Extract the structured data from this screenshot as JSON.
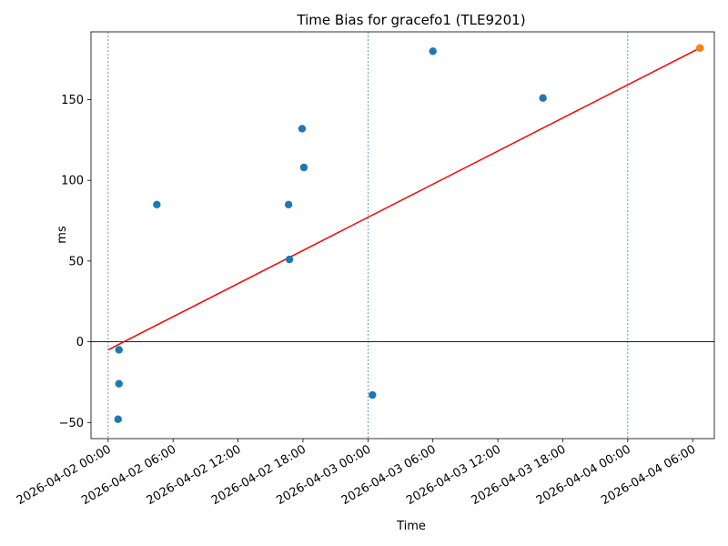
{
  "chart_data": {
    "type": "scatter",
    "title": "Time Bias for gracefo1 (TLE9201)",
    "xlabel": "Time",
    "ylabel": "ms",
    "x_tick_labels": [
      "2026-04-02 00:00",
      "2026-04-02 06:00",
      "2026-04-02 12:00",
      "2026-04-02 18:00",
      "2026-04-03 00:00",
      "2026-04-03 06:00",
      "2026-04-03 12:00",
      "2026-04-03 18:00",
      "2026-04-04 00:00",
      "2026-04-04 06:00"
    ],
    "x_tick_values": [
      "2026-04-02T00:00",
      "2026-04-02T06:00",
      "2026-04-02T12:00",
      "2026-04-02T18:00",
      "2026-04-03T00:00",
      "2026-04-03T06:00",
      "2026-04-03T12:00",
      "2026-04-03T18:00",
      "2026-04-04T00:00",
      "2026-04-04T06:00"
    ],
    "y_ticks": [
      -50,
      0,
      50,
      100,
      150
    ],
    "xlim": [
      "2026-04-01T22:25",
      "2026-04-04T08:00"
    ],
    "ylim": [
      -60,
      192
    ],
    "grid": false,
    "zero_line": 0,
    "vertical_reference_lines": [
      "2026-04-02T00:00",
      "2026-04-03T00:00",
      "2026-04-04T00:00"
    ],
    "series": [
      {
        "marker": "circle",
        "color": "#1f77b4",
        "points": [
          {
            "x": "2026-04-02T01:00",
            "y": -5
          },
          {
            "x": "2026-04-02T01:00",
            "y": -26
          },
          {
            "x": "2026-04-02T00:55",
            "y": -48
          },
          {
            "x": "2026-04-02T04:30",
            "y": 85
          },
          {
            "x": "2026-04-02T16:40",
            "y": 85
          },
          {
            "x": "2026-04-02T16:45",
            "y": 51
          },
          {
            "x": "2026-04-02T17:55",
            "y": 132
          },
          {
            "x": "2026-04-02T18:05",
            "y": 108
          },
          {
            "x": "2026-04-03T00:25",
            "y": -33
          },
          {
            "x": "2026-04-03T06:00",
            "y": 180
          },
          {
            "x": "2026-04-03T16:10",
            "y": 151
          }
        ]
      },
      {
        "marker": "circle",
        "color": "#ff7f0e",
        "points": [
          {
            "x": "2026-04-04T06:40",
            "y": 182
          }
        ]
      },
      {
        "type": "line",
        "color": "#ff0000",
        "points": [
          {
            "x": "2026-04-02T00:00",
            "y": -5
          },
          {
            "x": "2026-04-04T06:40",
            "y": 182
          }
        ]
      }
    ],
    "colors": {
      "points": "#1f77b4",
      "latest_point": "#ff7f0e",
      "trend_line": "#ff0000",
      "reference_lines": "#1f77b4"
    }
  }
}
